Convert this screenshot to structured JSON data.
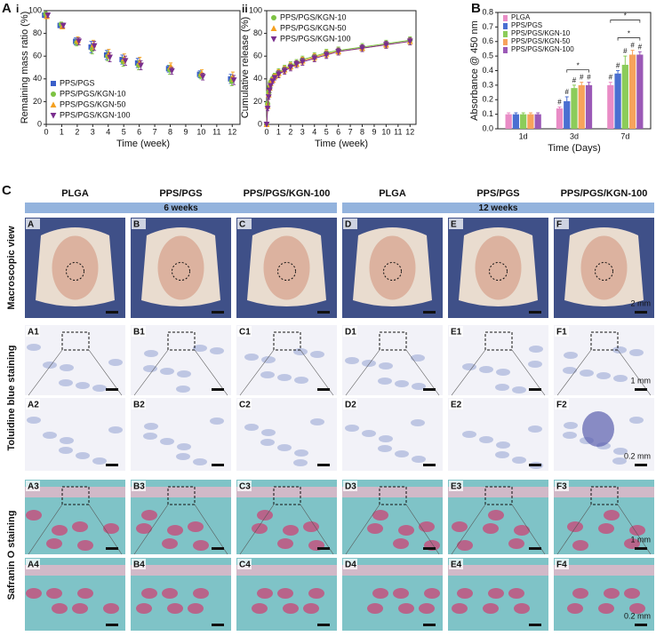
{
  "chart_data": [
    {
      "type": "scatter",
      "panel": "A",
      "subpanel": "i",
      "x_label": "Time (week)",
      "y_label": "Remaining mass ratio (%)",
      "xlim": [
        0,
        12.5
      ],
      "xticks": [
        0,
        1,
        2,
        3,
        4,
        5,
        6,
        7,
        8,
        9,
        10,
        11,
        12
      ],
      "ylim": [
        0,
        100
      ],
      "yticks": [
        0,
        20,
        40,
        60,
        80,
        100
      ],
      "legend": "lower left",
      "x": [
        0,
        1,
        2,
        3,
        4,
        5,
        6,
        8,
        10,
        12
      ],
      "series": [
        {
          "name": "PPS/PGS",
          "color": "#3b5fc9",
          "marker": "square",
          "values": [
            96,
            87,
            73,
            68,
            61,
            57,
            54,
            49,
            44,
            40
          ],
          "errors": [
            2,
            2,
            3,
            5,
            4,
            4,
            4,
            3,
            3,
            4
          ]
        },
        {
          "name": "PPS/PGS/KGN-10",
          "color": "#7cc242",
          "marker": "circle",
          "values": [
            97,
            88,
            72,
            66,
            60,
            55,
            52,
            48,
            43,
            38
          ],
          "errors": [
            2,
            2,
            3,
            4,
            4,
            4,
            4,
            4,
            3,
            4
          ]
        },
        {
          "name": "PPS/PGS/KGN-50",
          "color": "#f4a020",
          "marker": "triangle",
          "values": [
            95,
            86,
            74,
            70,
            62,
            58,
            55,
            51,
            45,
            42
          ],
          "errors": [
            2,
            2,
            3,
            4,
            4,
            4,
            4,
            3,
            3,
            4
          ]
        },
        {
          "name": "PPS/PGS/KGN-100",
          "color": "#7a2e8e",
          "marker": "triangle-down",
          "values": [
            96,
            87,
            73,
            69,
            59,
            56,
            52,
            47,
            42,
            39
          ],
          "errors": [
            2,
            2,
            3,
            4,
            4,
            4,
            4,
            3,
            3,
            4
          ]
        }
      ]
    },
    {
      "type": "scatter",
      "subpanel": "ii",
      "x_label": "Time (week)",
      "y_label": "Cumulative release (%)",
      "connect": true,
      "xlim": [
        0,
        12.5
      ],
      "xticks": [
        0,
        1,
        2,
        3,
        4,
        5,
        6,
        7,
        8,
        9,
        10,
        11,
        12
      ],
      "ylim": [
        0,
        100
      ],
      "yticks": [
        0,
        20,
        40,
        60,
        80,
        100
      ],
      "legend": "upper left",
      "x": [
        0,
        0.08,
        0.17,
        0.25,
        0.33,
        0.5,
        0.67,
        1,
        1.5,
        2,
        2.5,
        3,
        4,
        5,
        6,
        8,
        10,
        12
      ],
      "series": [
        {
          "name": "PPS/PGS/KGN-10",
          "color": "#7cc242",
          "marker": "circle",
          "values": [
            0,
            18,
            28,
            33,
            37,
            40,
            43,
            46,
            49,
            52,
            54,
            57,
            60,
            63,
            65,
            68,
            71,
            74
          ],
          "errors": [
            0,
            2,
            2,
            2,
            2,
            2,
            2,
            3,
            3,
            3,
            3,
            3,
            3,
            3,
            3,
            3,
            3,
            3
          ]
        },
        {
          "name": "PPS/PGS/KGN-50",
          "color": "#f4a020",
          "marker": "triangle",
          "values": [
            0,
            16,
            26,
            32,
            36,
            39,
            42,
            45,
            48,
            51,
            53,
            56,
            59,
            62,
            64,
            67,
            70,
            73
          ],
          "errors": [
            0,
            2,
            2,
            2,
            2,
            2,
            2,
            3,
            3,
            3,
            3,
            3,
            3,
            3,
            3,
            3,
            3,
            3
          ]
        },
        {
          "name": "PPS/PGS/KGN-100",
          "color": "#7a2e8e",
          "marker": "triangle-down",
          "values": [
            0,
            14,
            24,
            30,
            34,
            38,
            41,
            44,
            47,
            50,
            53,
            55,
            58,
            61,
            64,
            67,
            70,
            73
          ],
          "errors": [
            0,
            2,
            2,
            2,
            2,
            2,
            2,
            3,
            3,
            3,
            3,
            3,
            3,
            3,
            3,
            3,
            3,
            3
          ]
        }
      ]
    },
    {
      "type": "bar",
      "panel": "B",
      "x_label": "Time (Days)",
      "y_label": "Absorbance @ 450 nm",
      "categories": [
        "1d",
        "3d",
        "7d"
      ],
      "ylim": [
        0,
        0.8
      ],
      "yticks": [
        {
          "value": 0,
          "label": "0.0"
        },
        0.1,
        0.2,
        0.3,
        0.4,
        0.5,
        0.6,
        0.7,
        0.8
      ],
      "legend": "upper left",
      "series": [
        {
          "name": "PLGA",
          "color": "#e98cc6",
          "values": [
            0.1,
            0.14,
            0.3
          ],
          "errors": [
            0.01,
            0.01,
            0.02
          ]
        },
        {
          "name": "PPS/PGS",
          "color": "#4a6fd1",
          "values": [
            0.1,
            0.19,
            0.38
          ],
          "errors": [
            0.01,
            0.03,
            0.02
          ]
        },
        {
          "name": "PPS/PGS/KGN-10",
          "color": "#8ccc5a",
          "values": [
            0.1,
            0.28,
            0.44
          ],
          "errors": [
            0.01,
            0.02,
            0.06
          ]
        },
        {
          "name": "PPS/PGS/KGN-50",
          "color": "#f7a35c",
          "values": [
            0.1,
            0.3,
            0.51
          ],
          "errors": [
            0.01,
            0.02,
            0.03
          ]
        },
        {
          "name": "PPS/PGS/KGN-100",
          "color": "#9b59b6",
          "values": [
            0.1,
            0.3,
            0.51
          ],
          "errors": [
            0.01,
            0.02,
            0.02
          ]
        }
      ],
      "annotations": [
        {
          "text": "#",
          "series": 0,
          "category": 1
        },
        {
          "text": "#",
          "series": 1,
          "category": 1
        },
        {
          "text": "#",
          "series": 2,
          "category": 1
        },
        {
          "text": "#",
          "series": 3,
          "category": 1
        },
        {
          "text": "#",
          "series": 4,
          "category": 1
        },
        {
          "text": "#",
          "series": 0,
          "category": 2
        },
        {
          "text": "#",
          "series": 1,
          "category": 2
        },
        {
          "text": "#",
          "series": 2,
          "category": 2
        },
        {
          "text": "#",
          "series": 3,
          "category": 2
        },
        {
          "text": "#",
          "series": 4,
          "category": 2
        }
      ],
      "brackets": [
        {
          "text": "*",
          "category": 1,
          "from": 1,
          "to": 4
        },
        {
          "text": "*",
          "category": 2,
          "from": 0,
          "to": 4
        },
        {
          "text": "*",
          "category": 2,
          "from": 1,
          "to": 4
        }
      ]
    }
  ],
  "panel_c": {
    "label": "C",
    "columns": [
      "PLGA",
      "PPS/PGS",
      "PPS/PGS/KGN-100",
      "PLGA",
      "PPS/PGS",
      "PPS/PGS/KGN-100"
    ],
    "groups": [
      "6 weeks",
      "12 weeks"
    ],
    "rows": [
      "Macroscopic view",
      "Toluidine blue staining",
      "Safranin O staining"
    ],
    "cells": [
      [
        "A",
        "B",
        "C",
        "D",
        "E",
        "F"
      ],
      [
        "A1",
        "B1",
        "C1",
        "D1",
        "E1",
        "F1"
      ],
      [
        "A2",
        "B2",
        "C2",
        "D2",
        "E2",
        "F2"
      ],
      [
        "A3",
        "B3",
        "C3",
        "D3",
        "E3",
        "F3"
      ],
      [
        "A4",
        "B4",
        "C4",
        "D4",
        "E4",
        "F4"
      ]
    ],
    "scale_labels": [
      "2 mm",
      "1 mm",
      "0.2 mm",
      "1 mm",
      "0.2 mm"
    ]
  }
}
